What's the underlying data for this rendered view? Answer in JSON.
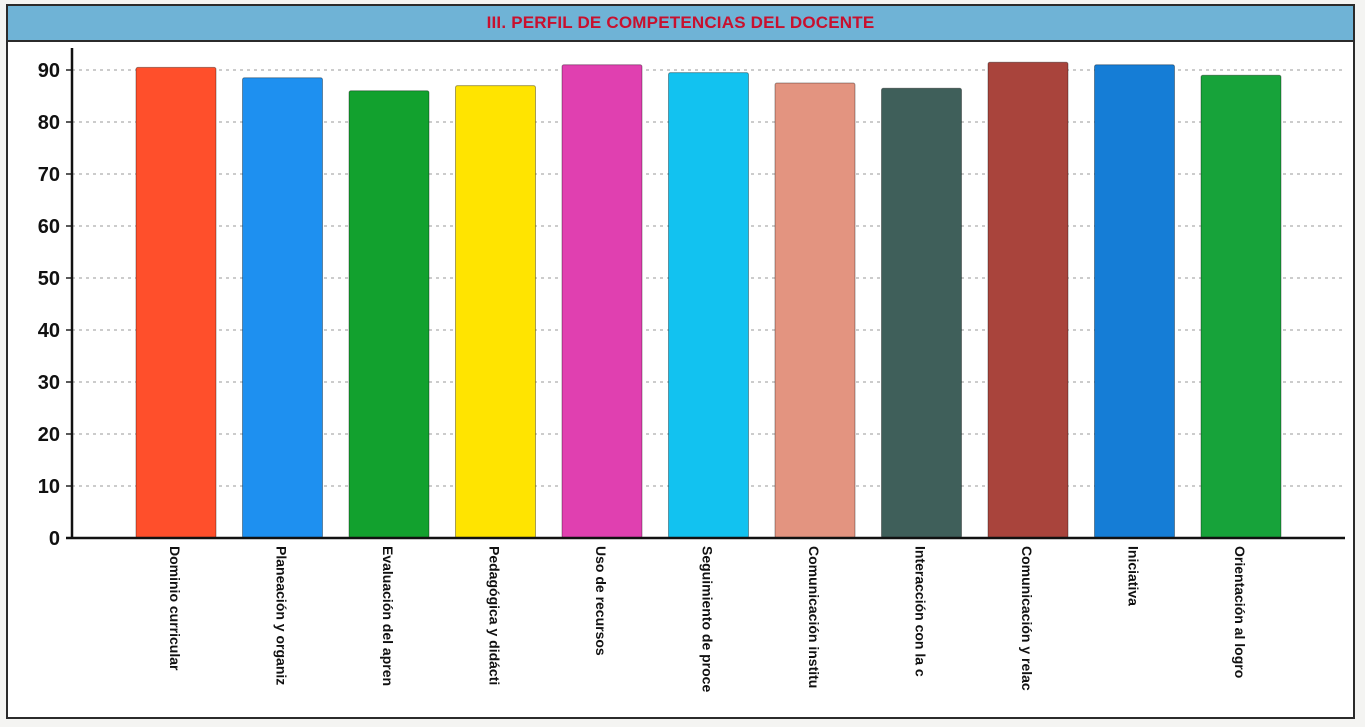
{
  "chart_data": {
    "type": "bar",
    "title": "III. PERFIL DE COMPETENCIAS DEL  DOCENTE",
    "xlabel": "",
    "ylabel": "",
    "ylim": [
      0,
      90
    ],
    "yticks": [
      0,
      10,
      20,
      30,
      40,
      50,
      60,
      70,
      80,
      90
    ],
    "grid": "horizontal-dashed",
    "legend": "none",
    "categories": [
      "Dominio curricular",
      "Planeación y organiz",
      "Evaluación del apren",
      "Pedagógica y didácti",
      "Uso de recursos",
      "Seguimiento de proce",
      "Comunicación institu",
      "Interacción con la c",
      "Comunicación y relac",
      "Iniciativa",
      "Orientación al logro"
    ],
    "values": [
      90.5,
      88.5,
      86,
      87,
      91,
      89.5,
      87.5,
      86.5,
      91.5,
      91,
      89
    ],
    "colors": [
      "#ff4f2b",
      "#1e90f0",
      "#12a12e",
      "#ffe400",
      "#e040b0",
      "#12c2f0",
      "#e39480",
      "#3f5f5a",
      "#a9443c",
      "#157dd6",
      "#17a33a"
    ]
  }
}
